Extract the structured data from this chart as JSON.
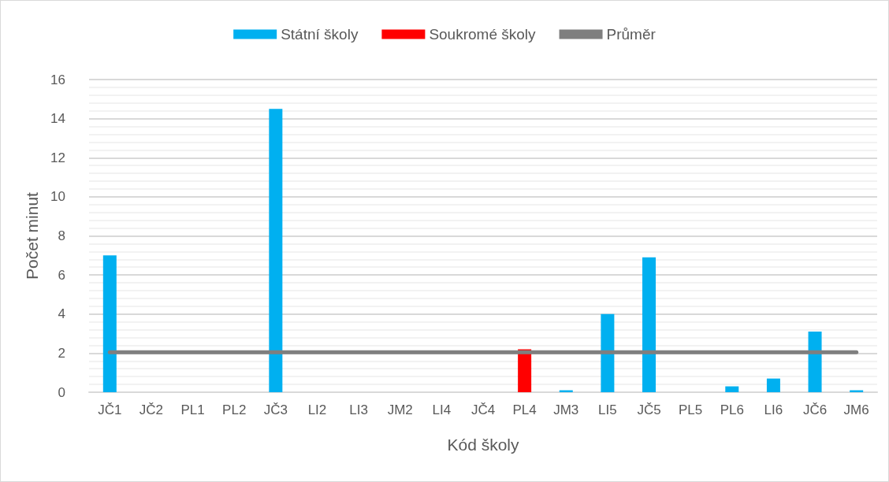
{
  "chart_data": {
    "type": "bar",
    "xlabel": "Kód školy",
    "ylabel": "Počet minut",
    "categories": [
      "JČ1",
      "JČ2",
      "PL1",
      "PL2",
      "JČ3",
      "LI2",
      "LI3",
      "JM2",
      "LI4",
      "JČ4",
      "PL4",
      "JM3",
      "LI5",
      "JČ5",
      "PL5",
      "PL6",
      "LI6",
      "JČ6",
      "JM6"
    ],
    "series": [
      {
        "name": "Státní školy",
        "color": "#00b0f0",
        "values": [
          7.0,
          0,
          0,
          0,
          14.5,
          0,
          0,
          0,
          0,
          0,
          null,
          0.1,
          4.0,
          6.9,
          0,
          0.3,
          0.7,
          3.1,
          0.1
        ]
      },
      {
        "name": "Soukromé školy",
        "color": "#ff0000",
        "values": [
          null,
          null,
          null,
          null,
          null,
          null,
          null,
          null,
          null,
          null,
          2.2,
          null,
          null,
          null,
          null,
          null,
          null,
          null,
          null
        ]
      },
      {
        "name": "Průměr",
        "type": "line",
        "color": "#7f7f7f",
        "marker": "none",
        "line_style": "solid",
        "values": [
          2.05,
          2.05,
          2.05,
          2.05,
          2.05,
          2.05,
          2.05,
          2.05,
          2.05,
          2.05,
          2.05,
          2.05,
          2.05,
          2.05,
          2.05,
          2.05,
          2.05,
          2.05,
          2.05
        ]
      }
    ],
    "ylim": [
      0,
      16
    ],
    "yticks": [
      0,
      2,
      4,
      6,
      8,
      10,
      12,
      14,
      16
    ],
    "grid": "y",
    "legend": "top"
  }
}
